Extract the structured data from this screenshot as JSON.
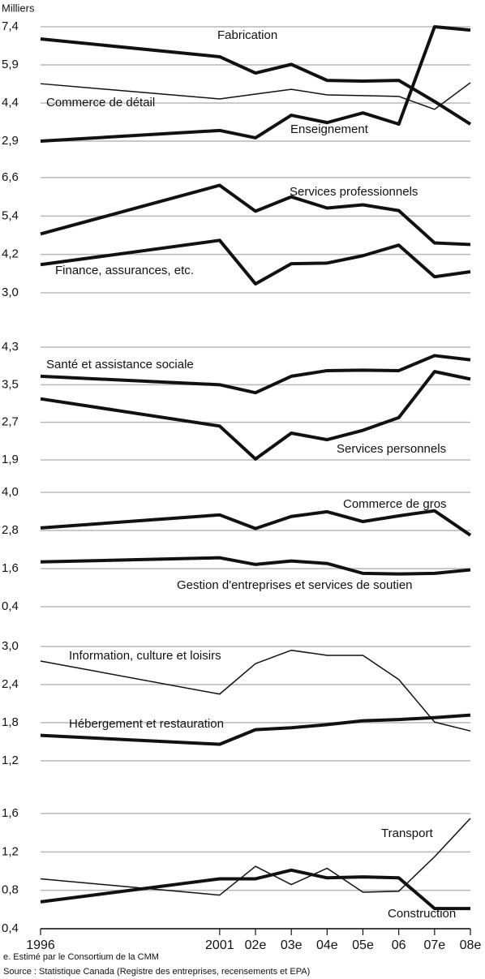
{
  "y_label": "Milliers",
  "notes": [
    "e.  Estimé par le Consortium de la CMM",
    "Source : Statistique Canada (Registre des entreprises, recensements et EPA)"
  ],
  "chart_data": [
    {
      "type": "line",
      "x": [
        1996,
        2001,
        2002,
        2003,
        2004,
        2005,
        2006,
        2007,
        2008
      ],
      "xlim": [
        1996,
        2008
      ],
      "ylim": [
        2.9,
        7.4
      ],
      "yticks": [
        {
          "value": 2.9,
          "label": "2,9"
        },
        {
          "value": 4.4,
          "label": "4,4"
        },
        {
          "value": 5.9,
          "label": "5,9"
        },
        {
          "value": 7.4,
          "label": "7,4"
        }
      ],
      "series": [
        {
          "name": "Fabrication",
          "color": "#111111",
          "linewidth": 4,
          "values": [
            6.92,
            6.22,
            5.58,
            5.92,
            5.29,
            5.26,
            5.29,
            4.46,
            3.57
          ]
        },
        {
          "name": "Commerce de détail",
          "color": "#111111",
          "linewidth": 1.5,
          "values": [
            5.16,
            4.56,
            4.75,
            4.94,
            4.72,
            4.69,
            4.66,
            4.15,
            5.2
          ]
        },
        {
          "name": "Enseignement",
          "color": "#111111",
          "linewidth": 4,
          "values": [
            2.9,
            3.32,
            3.03,
            3.92,
            3.63,
            4.01,
            3.57,
            7.4,
            7.27
          ]
        }
      ]
    },
    {
      "type": "line",
      "x": [
        1996,
        2001,
        2002,
        2003,
        2004,
        2005,
        2006,
        2007,
        2008
      ],
      "xlim": [
        1996,
        2008
      ],
      "ylim": [
        3.0,
        6.6
      ],
      "yticks": [
        {
          "value": 3.0,
          "label": "3,0"
        },
        {
          "value": 4.2,
          "label": "4,2"
        },
        {
          "value": 5.4,
          "label": "5,4"
        },
        {
          "value": 6.6,
          "label": "6,6"
        }
      ],
      "series": [
        {
          "name": "Services professionnels",
          "color": "#111111",
          "linewidth": 4,
          "values": [
            4.84,
            6.36,
            5.55,
            6.0,
            5.65,
            5.75,
            5.57,
            4.56,
            4.51
          ]
        },
        {
          "name": "Finance, assurances, etc.",
          "color": "#111111",
          "linewidth": 4,
          "values": [
            3.88,
            4.64,
            3.28,
            3.91,
            3.93,
            4.16,
            4.49,
            3.5,
            3.66
          ]
        }
      ]
    },
    {
      "type": "line",
      "x": [
        1996,
        2001,
        2002,
        2003,
        2004,
        2005,
        2006,
        2007,
        2008
      ],
      "xlim": [
        1996,
        2008
      ],
      "ylim": [
        1.9,
        4.3
      ],
      "yticks": [
        {
          "value": 1.9,
          "label": "1,9"
        },
        {
          "value": 2.7,
          "label": "2,7"
        },
        {
          "value": 3.5,
          "label": "3,5"
        },
        {
          "value": 4.3,
          "label": "4,3"
        }
      ],
      "series": [
        {
          "name": "Santé et assistance sociale",
          "color": "#111111",
          "linewidth": 4,
          "values": [
            3.68,
            3.5,
            3.33,
            3.68,
            3.8,
            3.81,
            3.8,
            4.12,
            4.03
          ]
        },
        {
          "name": "Services personnels",
          "color": "#111111",
          "linewidth": 4,
          "values": [
            3.2,
            2.62,
            1.92,
            2.47,
            2.33,
            2.53,
            2.8,
            3.78,
            3.62
          ]
        }
      ]
    },
    {
      "type": "line",
      "x": [
        1996,
        2001,
        2002,
        2003,
        2004,
        2005,
        2006,
        2007,
        2008
      ],
      "xlim": [
        1996,
        2008
      ],
      "ylim": [
        0.4,
        4.0
      ],
      "yticks": [
        {
          "value": 0.4,
          "label": "0,4"
        },
        {
          "value": 1.6,
          "label": "1,6"
        },
        {
          "value": 2.8,
          "label": "2,8"
        },
        {
          "value": 4.0,
          "label": "4,0"
        }
      ],
      "series": [
        {
          "name": "Commerce de gros",
          "color": "#111111",
          "linewidth": 4,
          "values": [
            2.88,
            3.29,
            2.86,
            3.24,
            3.39,
            3.08,
            3.26,
            3.42,
            2.65
          ]
        },
        {
          "name": "Gestion d'entreprises et services de soutien",
          "color": "#111111",
          "linewidth": 4,
          "values": [
            1.81,
            1.94,
            1.73,
            1.84,
            1.76,
            1.45,
            1.43,
            1.45,
            1.56
          ]
        }
      ]
    },
    {
      "type": "line",
      "x": [
        1996,
        2001,
        2002,
        2003,
        2004,
        2005,
        2006,
        2007,
        2008
      ],
      "xlim": [
        1996,
        2008
      ],
      "ylim": [
        1.2,
        3.0
      ],
      "yticks": [
        {
          "value": 1.2,
          "label": "1,2"
        },
        {
          "value": 1.8,
          "label": "1,8"
        },
        {
          "value": 2.4,
          "label": "2,4"
        },
        {
          "value": 3.0,
          "label": "3,0"
        }
      ],
      "series": [
        {
          "name": "Information, culture et loisirs",
          "color": "#111111",
          "linewidth": 1.5,
          "values": [
            2.77,
            2.25,
            2.73,
            2.94,
            2.86,
            2.86,
            2.48,
            1.81,
            1.67
          ]
        },
        {
          "name": "Hébergement et restauration",
          "color": "#111111",
          "linewidth": 4,
          "values": [
            1.6,
            1.46,
            1.69,
            1.72,
            1.77,
            1.83,
            1.85,
            1.88,
            1.92
          ]
        }
      ]
    },
    {
      "type": "line",
      "x": [
        1996,
        2001,
        2002,
        2003,
        2004,
        2005,
        2006,
        2007,
        2008
      ],
      "xlim": [
        1996,
        2008
      ],
      "ylim": [
        0.4,
        1.6
      ],
      "yticks": [
        {
          "value": 0.4,
          "label": "0,4"
        },
        {
          "value": 0.8,
          "label": "0,8"
        },
        {
          "value": 1.2,
          "label": "1,2"
        },
        {
          "value": 1.6,
          "label": "1,6"
        }
      ],
      "xticks": [
        1996,
        2001,
        {
          "value": 2002,
          "label": "02e"
        },
        {
          "value": 2003,
          "label": "03e"
        },
        {
          "value": 2004,
          "label": "04e"
        },
        {
          "value": 2005,
          "label": "05e"
        },
        {
          "value": 2006,
          "label": "06"
        },
        {
          "value": 2007,
          "label": "07e"
        },
        {
          "value": 2008,
          "label": "08e"
        }
      ],
      "series": [
        {
          "name": "Transport",
          "color": "#111111",
          "linewidth": 1.5,
          "values": [
            0.92,
            0.75,
            1.05,
            0.86,
            1.03,
            0.78,
            0.79,
            1.15,
            1.55
          ]
        },
        {
          "name": "Construction",
          "color": "#111111",
          "linewidth": 4,
          "values": [
            0.68,
            0.92,
            0.92,
            1.01,
            0.93,
            0.94,
            0.93,
            0.61,
            0.61
          ]
        }
      ]
    }
  ]
}
